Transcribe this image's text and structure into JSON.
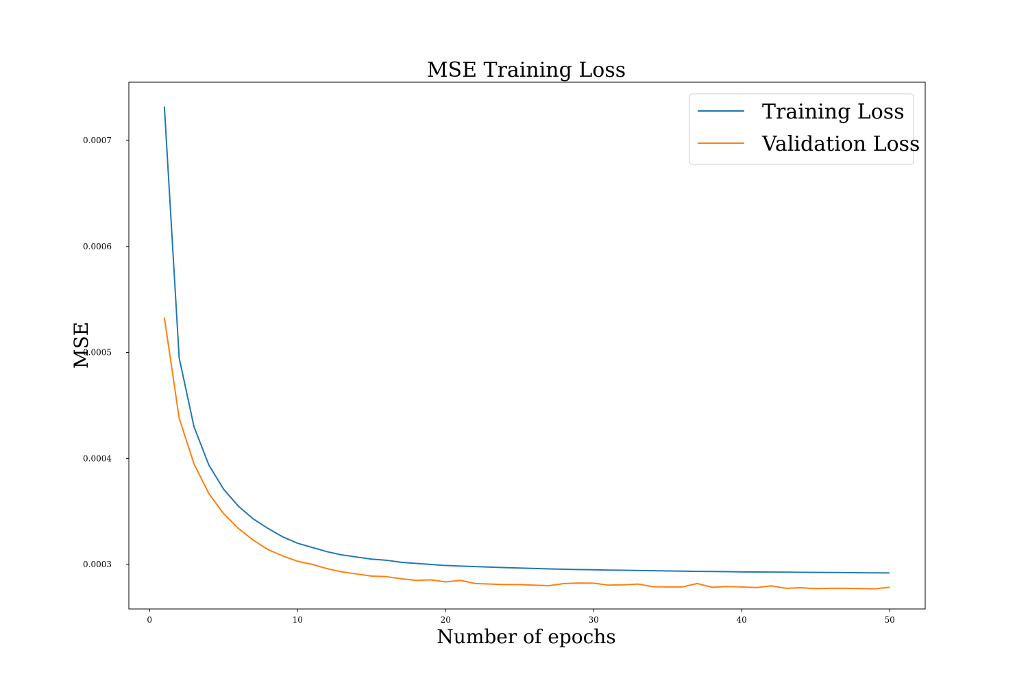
{
  "chart_data": {
    "type": "line",
    "title": "MSE Training Loss",
    "xlabel": "Number of epochs",
    "ylabel": "MSE",
    "xlim": [
      -1.4,
      52.4
    ],
    "ylim": [
      0.000258,
      0.000755
    ],
    "xticks": [
      0,
      10,
      20,
      30,
      40,
      50
    ],
    "xtick_labels": [
      "0",
      "10",
      "20",
      "30",
      "40",
      "50"
    ],
    "yticks": [
      0.0003,
      0.0004,
      0.0005,
      0.0006,
      0.0007
    ],
    "ytick_labels": [
      "0.0003",
      "0.0004",
      "0.0005",
      "0.0006",
      "0.0007"
    ],
    "grid": false,
    "legend_position": "top-right",
    "x": [
      1,
      2,
      3,
      4,
      5,
      6,
      7,
      8,
      9,
      10,
      11,
      12,
      13,
      14,
      15,
      16,
      17,
      18,
      19,
      20,
      21,
      22,
      23,
      24,
      25,
      26,
      27,
      28,
      29,
      30,
      31,
      32,
      33,
      34,
      35,
      36,
      37,
      38,
      39,
      40,
      41,
      42,
      43,
      44,
      45,
      46,
      47,
      48,
      49,
      50
    ],
    "series": [
      {
        "name": "Training Loss",
        "color": "#1f77b4",
        "values": [
          0.000732,
          0.000495,
          0.00043,
          0.000394,
          0.000371,
          0.000355,
          0.000343,
          0.000334,
          0.000326,
          0.00032,
          0.000316,
          0.000312,
          0.000309,
          0.000307,
          0.000305,
          0.000304,
          0.000302,
          0.000301,
          0.0003,
          0.000299,
          0.0002985,
          0.000298,
          0.0002975,
          0.000297,
          0.0002966,
          0.0002962,
          0.0002958,
          0.0002955,
          0.0002952,
          0.000295,
          0.0002947,
          0.0002945,
          0.0002943,
          0.0002941,
          0.0002939,
          0.0002937,
          0.0002935,
          0.0002934,
          0.0002932,
          0.000293,
          0.0002929,
          0.0002928,
          0.0002927,
          0.0002926,
          0.0002925,
          0.0002924,
          0.0002923,
          0.0002922,
          0.0002921,
          0.000292
        ]
      },
      {
        "name": "Validation Loss",
        "color": "#ff7f0e",
        "values": [
          0.000533,
          0.000438,
          0.000395,
          0.000367,
          0.000348,
          0.000334,
          0.000323,
          0.000314,
          0.000308,
          0.000303,
          0.0003,
          0.000296,
          0.000293,
          0.000291,
          0.000289,
          0.0002885,
          0.0002865,
          0.000285,
          0.0002855,
          0.0002835,
          0.000285,
          0.000282,
          0.0002815,
          0.000281,
          0.000281,
          0.0002805,
          0.00028,
          0.000282,
          0.0002825,
          0.0002823,
          0.0002805,
          0.0002808,
          0.0002815,
          0.000279,
          0.0002788,
          0.0002788,
          0.000282,
          0.0002785,
          0.0002792,
          0.0002788,
          0.0002782,
          0.0002798,
          0.0002775,
          0.000278,
          0.0002772,
          0.0002775,
          0.0002775,
          0.0002772,
          0.000277,
          0.0002785
        ]
      }
    ]
  }
}
